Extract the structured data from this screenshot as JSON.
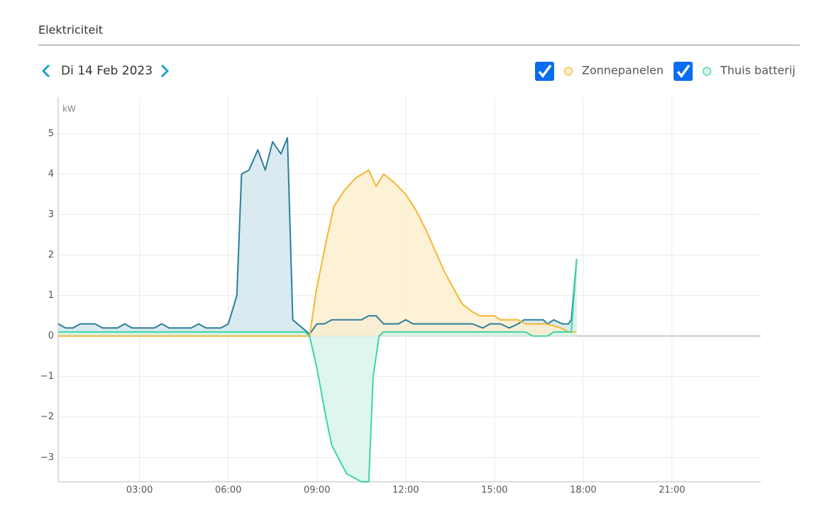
{
  "header": {
    "title": "Elektriciteit",
    "date": "Di 14 Feb 2023"
  },
  "chart_data": {
    "type": "area",
    "unit": "kW",
    "xlim": [
      0.25,
      24
    ],
    "ylim": [
      -3.6,
      5.9
    ],
    "xticks": [
      {
        "value": 3,
        "label": "03:00"
      },
      {
        "value": 6,
        "label": "06:00"
      },
      {
        "value": 9,
        "label": "09:00"
      },
      {
        "value": 12,
        "label": "12:00"
      },
      {
        "value": 15,
        "label": "15:00"
      },
      {
        "value": 18,
        "label": "18:00"
      },
      {
        "value": 21,
        "label": "21:00"
      }
    ],
    "yticks": [
      {
        "value": -3,
        "label": "−3"
      },
      {
        "value": -2,
        "label": "−2"
      },
      {
        "value": -1,
        "label": "−1"
      },
      0,
      1,
      2,
      3,
      4,
      5
    ],
    "grid": true,
    "series": [
      {
        "color": "#2b7f9b",
        "fill": "#d3e6ed",
        "x": [
          0.25,
          0.5,
          0.75,
          1,
          1.5,
          1.75,
          2.25,
          2.5,
          2.75,
          3.5,
          3.75,
          4,
          4.75,
          5,
          5.25,
          5.75,
          6,
          6.29,
          6.45,
          6.7,
          7.0,
          7.25,
          7.5,
          7.78,
          8.0,
          8.18,
          8.75,
          9.0,
          9.25,
          9.5,
          10.5,
          10.75,
          11.0,
          11.25,
          11.75,
          12.0,
          12.25,
          14.25,
          14.6,
          14.85,
          15.2,
          15.5,
          15.8,
          16.0,
          16.65,
          16.8,
          17.0,
          17.3,
          17.5,
          17.6,
          17.78
        ],
        "values": [
          0.3,
          0.2,
          0.2,
          0.3,
          0.3,
          0.2,
          0.2,
          0.3,
          0.2,
          0.2,
          0.3,
          0.2,
          0.2,
          0.3,
          0.2,
          0.2,
          0.3,
          1.0,
          4.0,
          4.1,
          4.6,
          4.1,
          4.8,
          4.5,
          4.9,
          0.4,
          0.05,
          0.3,
          0.3,
          0.4,
          0.4,
          0.5,
          0.5,
          0.3,
          0.3,
          0.4,
          0.3,
          0.3,
          0.2,
          0.3,
          0.3,
          0.2,
          0.3,
          0.4,
          0.4,
          0.3,
          0.4,
          0.3,
          0.3,
          0.4,
          1.9
        ]
      },
      {
        "name": "Zonnepanelen",
        "color": "#f4b731",
        "fill": "#fdefcf",
        "x": [
          0.25,
          8.75,
          8.97,
          9.3,
          9.57,
          9.93,
          10.3,
          10.75,
          11.0,
          11.25,
          11.6,
          12.0,
          12.35,
          12.7,
          13.3,
          13.9,
          14.25,
          14.5,
          15.0,
          15.2,
          15.8,
          16.05,
          16.75,
          17.25,
          17.5,
          17.75
        ],
        "values": [
          0,
          0,
          1.1,
          2.3,
          3.2,
          3.6,
          3.9,
          4.1,
          3.7,
          4.0,
          3.8,
          3.5,
          3.1,
          2.6,
          1.6,
          0.8,
          0.6,
          0.5,
          0.5,
          0.4,
          0.4,
          0.3,
          0.3,
          0.2,
          0.1,
          0.1
        ]
      },
      {
        "name": "Thuis batterij",
        "color": "#3dd5a3",
        "fill": "#d8f5eb",
        "x": [
          0.25,
          8.6,
          8.75,
          9.0,
          9.3,
          9.5,
          10.0,
          10.5,
          10.75,
          10.9,
          11.1,
          11.25,
          16.05,
          16.3,
          16.8,
          17.0,
          17.6,
          17.78
        ],
        "values": [
          0.1,
          0.1,
          0.0,
          -0.8,
          -2.0,
          -2.7,
          -3.4,
          -3.6,
          -3.6,
          -1.0,
          0.0,
          0.1,
          0.1,
          0.0,
          0.0,
          0.1,
          0.1,
          1.9
        ]
      }
    ]
  }
}
